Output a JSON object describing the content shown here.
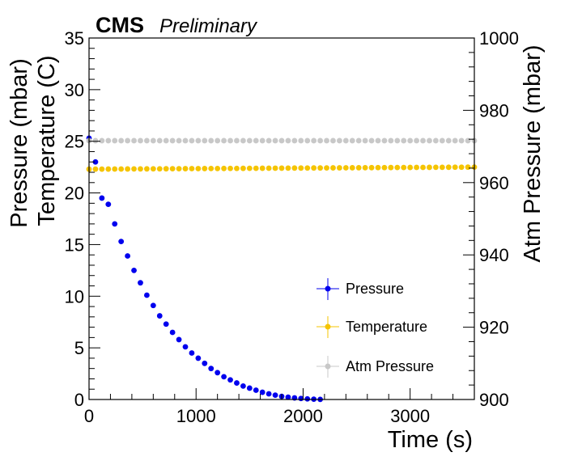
{
  "chart_data": {
    "type": "scatter",
    "experiment_label": "CMS",
    "status_label": "Preliminary",
    "xlabel": "Time (s)",
    "ylabel_lines": [
      "Pressure (mbar)",
      "Temperature (C)"
    ],
    "ylabel_right": "Atm Pressure (mbar)",
    "xlim": [
      0,
      3600
    ],
    "ylim": [
      0,
      35
    ],
    "ylim_right": [
      900,
      1000
    ],
    "x_ticks": [
      0,
      1000,
      2000,
      3000
    ],
    "y_ticks": [
      0,
      5,
      10,
      15,
      20,
      25,
      30,
      35
    ],
    "y_right_ticks": [
      900,
      920,
      940,
      960,
      980,
      1000
    ],
    "grid": false,
    "legend_position": "bottom-right",
    "series": [
      {
        "name": "Pressure",
        "color": "#0000ee",
        "axis": "left",
        "x": [
          0,
          60,
          120,
          180,
          240,
          300,
          360,
          420,
          480,
          540,
          600,
          660,
          720,
          780,
          840,
          900,
          960,
          1020,
          1080,
          1140,
          1200,
          1260,
          1320,
          1380,
          1440,
          1500,
          1560,
          1620,
          1680,
          1740,
          1800,
          1860,
          1920,
          1980,
          2040,
          2100,
          2160
        ],
        "y": [
          25.3,
          23.0,
          19.5,
          18.9,
          17.0,
          15.3,
          13.9,
          12.5,
          11.3,
          10.1,
          9.1,
          8.1,
          7.3,
          6.5,
          5.8,
          5.1,
          4.5,
          4.0,
          3.5,
          3.0,
          2.6,
          2.2,
          1.9,
          1.6,
          1.3,
          1.1,
          0.9,
          0.7,
          0.55,
          0.42,
          0.3,
          0.22,
          0.15,
          0.1,
          0.06,
          0.03,
          0.01
        ]
      },
      {
        "name": "Temperature",
        "color": "#f5c400",
        "axis": "left",
        "x_start": 0,
        "x_end": 3600,
        "x_step": 60,
        "y_start": 22.3,
        "y_end": 22.5
      },
      {
        "name": "Atm Pressure",
        "color": "#c8c8c8",
        "axis": "right",
        "x_start": 0,
        "x_end": 3600,
        "x_step": 60,
        "y_start": 971.6,
        "y_end": 971.6
      }
    ]
  }
}
